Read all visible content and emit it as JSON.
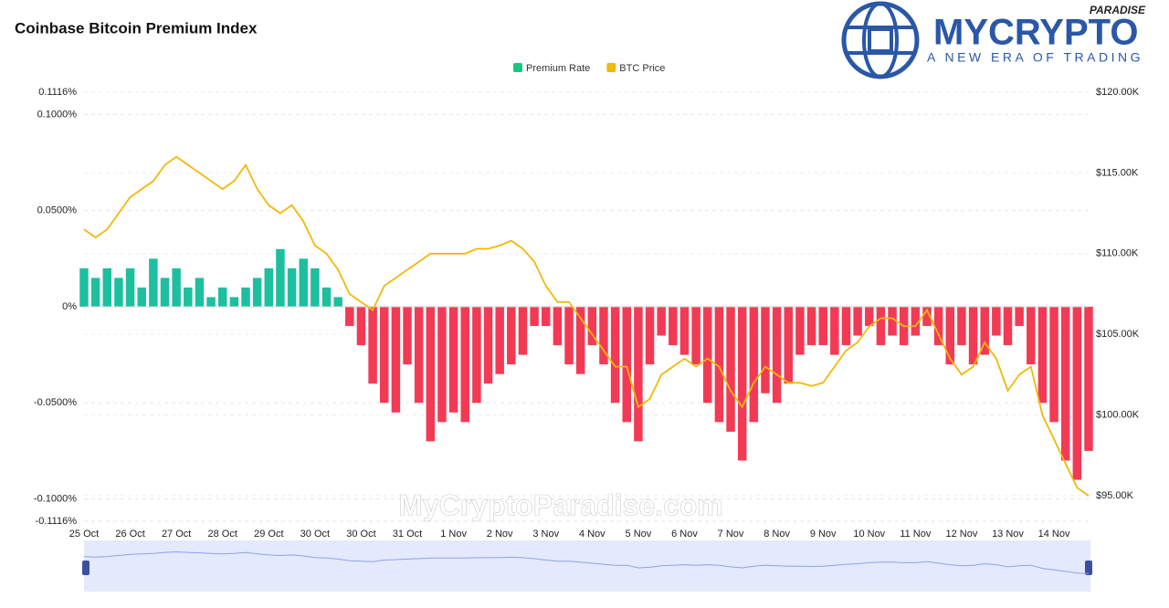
{
  "chart_data": {
    "type": "bar-line",
    "title": "Coinbase Bitcoin Premium Index",
    "logo": {
      "top": "PARADISE",
      "name": "MYCRYPTO",
      "tagline": "A NEW ERA OF TRADING"
    },
    "watermark": "MyCryptoParadise.com",
    "categories": [
      "25 Oct",
      null,
      null,
      null,
      "26 Oct",
      null,
      null,
      null,
      "27 Oct",
      null,
      null,
      null,
      "28 Oct",
      null,
      null,
      null,
      "29 Oct",
      null,
      null,
      null,
      "30 Oct",
      null,
      null,
      null,
      "30 Oct",
      null,
      null,
      null,
      "31 Oct",
      null,
      null,
      null,
      "1 Nov",
      null,
      null,
      null,
      "2 Nov",
      null,
      null,
      null,
      "3 Nov",
      null,
      null,
      null,
      "4 Nov",
      null,
      null,
      null,
      "5 Nov",
      null,
      null,
      null,
      "6 Nov",
      null,
      null,
      null,
      "7 Nov",
      null,
      null,
      null,
      "8 Nov",
      null,
      null,
      null,
      "9 Nov",
      null,
      null,
      null,
      "10 Nov",
      null,
      null,
      null,
      "11 Nov",
      null,
      null,
      null,
      "12 Nov",
      null,
      null,
      null,
      "13 Nov",
      null,
      null,
      null,
      "14 Nov",
      null,
      null,
      null
    ],
    "series": [
      {
        "name": "Premium Rate",
        "color": "#16c784",
        "positive_color": "#1dbf9f",
        "negative_color": "#f23a55",
        "values": [
          0.02,
          0.015,
          0.02,
          0.015,
          0.02,
          0.01,
          0.025,
          0.015,
          0.02,
          0.01,
          0.015,
          0.005,
          0.01,
          0.005,
          0.01,
          0.015,
          0.02,
          0.03,
          0.02,
          0.025,
          0.02,
          0.01,
          0.005,
          -0.01,
          -0.02,
          -0.04,
          -0.05,
          -0.055,
          -0.03,
          -0.05,
          -0.07,
          -0.06,
          -0.055,
          -0.06,
          -0.05,
          -0.04,
          -0.035,
          -0.03,
          -0.025,
          -0.01,
          -0.01,
          -0.02,
          -0.03,
          -0.035,
          -0.02,
          -0.03,
          -0.05,
          -0.06,
          -0.07,
          -0.03,
          -0.015,
          -0.02,
          -0.025,
          -0.03,
          -0.05,
          -0.06,
          -0.065,
          -0.08,
          -0.06,
          -0.045,
          -0.05,
          -0.04,
          -0.025,
          -0.02,
          -0.02,
          -0.025,
          -0.02,
          -0.015,
          -0.01,
          -0.02,
          -0.015,
          -0.02,
          -0.015,
          -0.01,
          -0.02,
          -0.03,
          -0.02,
          -0.03,
          -0.025,
          -0.015,
          -0.02,
          -0.01,
          -0.03,
          -0.05,
          -0.06,
          -0.08,
          -0.09,
          -0.075
        ]
      },
      {
        "name": "BTC Price",
        "color": "#f0b90b",
        "axis": "y2",
        "values": [
          111500,
          111000,
          111500,
          112500,
          113500,
          114000,
          114500,
          115500,
          116000,
          115500,
          115000,
          114500,
          114000,
          114500,
          115500,
          114000,
          113000,
          112500,
          113000,
          112000,
          110500,
          110000,
          109000,
          107500,
          107000,
          106500,
          108000,
          108500,
          109000,
          109500,
          110000,
          110000,
          110000,
          110000,
          110300,
          110300,
          110500,
          110800,
          110300,
          109500,
          108000,
          107000,
          107000,
          106000,
          105000,
          104000,
          103000,
          103000,
          100500,
          101000,
          102500,
          103000,
          103500,
          103000,
          103500,
          103000,
          101500,
          100500,
          102000,
          103000,
          102500,
          102000,
          102000,
          101800,
          102000,
          103000,
          104000,
          104500,
          105500,
          106000,
          106000,
          105500,
          105500,
          106500,
          105000,
          103500,
          102500,
          103000,
          104500,
          103500,
          101500,
          102500,
          103000,
          100000,
          98500,
          97000,
          95500,
          95000
        ]
      }
    ],
    "ylim": [
      -0.1116,
      0.1116
    ],
    "yticks": [
      {
        "value": -0.1116,
        "label": "-0.1116%"
      },
      {
        "value": -0.1,
        "label": "-0.1000%"
      },
      {
        "value": -0.05,
        "label": "-0.0500%"
      },
      {
        "value": 0,
        "label": "0%"
      },
      {
        "value": 0.05,
        "label": "0.0500%"
      },
      {
        "value": 0.1,
        "label": "0.1000%"
      },
      {
        "value": 0.1116,
        "label": "0.1116%"
      }
    ],
    "y2lim": [
      93420,
      120000
    ],
    "y2ticks": [
      {
        "value": 95000,
        "label": "$95.00K"
      },
      {
        "value": 100000,
        "label": "$100.00K"
      },
      {
        "value": 105000,
        "label": "$105.00K"
      },
      {
        "value": 110000,
        "label": "$110.00K"
      },
      {
        "value": 115000,
        "label": "$115.00K"
      },
      {
        "value": 120000,
        "label": "$120.00K"
      }
    ],
    "grid": true
  }
}
